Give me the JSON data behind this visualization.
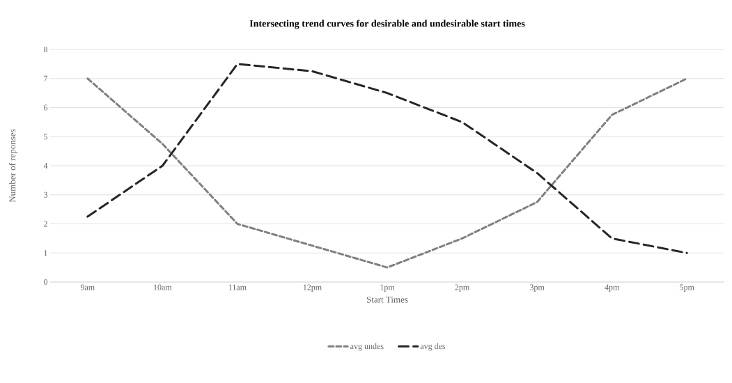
{
  "chart_data": {
    "type": "line",
    "title": "Intersecting trend curves for desirable and undesirable start times",
    "xlabel": "Start Times",
    "ylabel": "Number of reponses",
    "categories": [
      "9am",
      "10am",
      "11am",
      "12pm",
      "1pm",
      "2pm",
      "3pm",
      "4pm",
      "5pm"
    ],
    "series": [
      {
        "name": "avg undes",
        "color": "#808080",
        "values": [
          7,
          4.75,
          2,
          1.25,
          0.5,
          1.5,
          2.75,
          5.75,
          7
        ]
      },
      {
        "name": "avg des",
        "color": "#262626",
        "values": [
          2.25,
          4,
          7.5,
          7.25,
          6.5,
          5.5,
          3.75,
          1.5,
          1
        ]
      }
    ],
    "ylim": [
      0,
      8
    ],
    "yticks": [
      0,
      1,
      2,
      3,
      4,
      5,
      6,
      7,
      8
    ],
    "grid": "y",
    "legend": "bottom",
    "marker": "none",
    "line_style": "dashed"
  }
}
